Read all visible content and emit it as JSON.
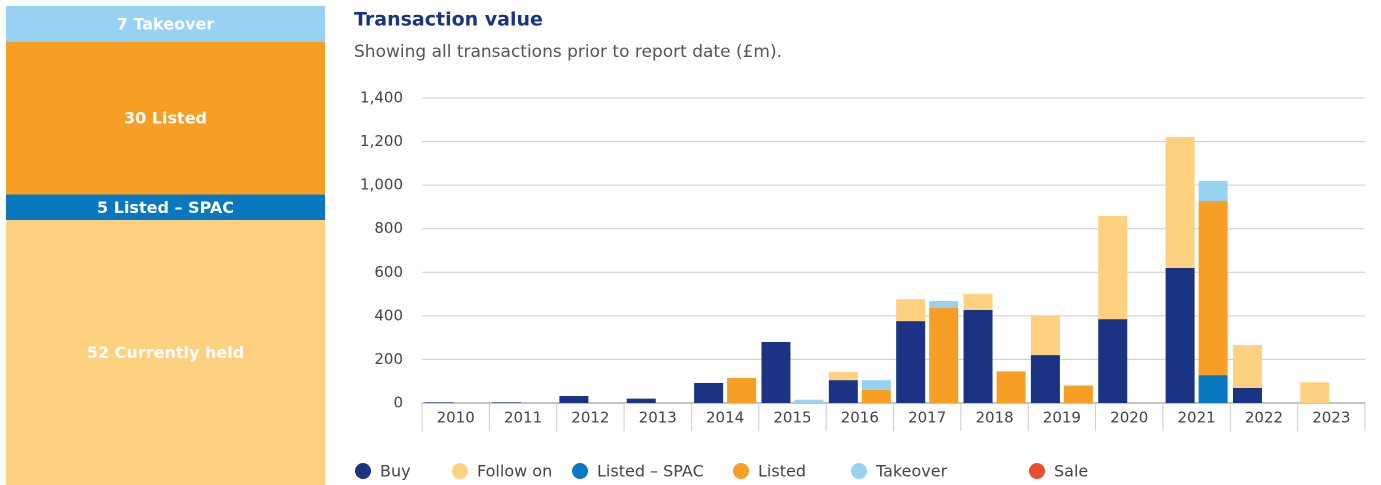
{
  "chart_data": [
    {
      "type": "block",
      "values": [
        7,
        30,
        5,
        52
      ],
      "value_labels": [
        "7 Takeover",
        "30 Listed",
        "5 Listed – SPAC",
        "52 Currently held"
      ],
      "colors": [
        "#98d2f2",
        "#f79f25",
        "#0878c1",
        "#fdd17f"
      ]
    },
    {
      "type": "grouped-stacked-bar",
      "title": "Transaction value",
      "subtitle": "Showing all transactions prior to report date (£m).",
      "categories": [
        "2010",
        "2011",
        "2012",
        "2013",
        "2014",
        "2015",
        "2016",
        "2017",
        "2018",
        "2019",
        "2020",
        "2021",
        "2022",
        "2023"
      ],
      "series": [
        {
          "name": "Buy",
          "color": "#1a3483",
          "stack": "a",
          "values": [
            3,
            3,
            32,
            20,
            92,
            280,
            105,
            376,
            427,
            220,
            385,
            620,
            69,
            0
          ]
        },
        {
          "name": "Follow on",
          "color": "#fdd17f",
          "stack": "a",
          "values": [
            0,
            0,
            0,
            0,
            0,
            0,
            37,
            101,
            73,
            183,
            473,
            601,
            197,
            95
          ]
        },
        {
          "name": "Listed – SPAC",
          "color": "#0878c1",
          "stack": "b",
          "values": [
            0,
            0,
            0,
            0,
            0,
            0,
            0,
            0,
            0,
            0,
            0,
            128,
            0,
            0
          ]
        },
        {
          "name": "Listed",
          "color": "#f79f25",
          "stack": "b",
          "values": [
            0,
            0,
            0,
            0,
            115,
            0,
            60,
            436,
            145,
            80,
            0,
            799,
            0,
            0
          ]
        },
        {
          "name": "Takeover",
          "color": "#98d2f2",
          "stack": "b",
          "values": [
            0,
            0,
            0,
            0,
            0,
            15,
            45,
            32,
            0,
            0,
            0,
            92,
            0,
            0
          ]
        },
        {
          "name": "Sale",
          "color": "#e94e2f",
          "stack": "b",
          "values": [
            0,
            0,
            0,
            0,
            0,
            0,
            0,
            0,
            0,
            0,
            0,
            0,
            0,
            0
          ]
        }
      ],
      "ylim": [
        0,
        1400
      ],
      "yticks": [
        0,
        200,
        400,
        600,
        800,
        {
          "value": 1000,
          "label": "1,000"
        },
        {
          "value": 1200,
          "label": "1,200"
        },
        {
          "value": 1400,
          "label": "1,400"
        }
      ],
      "grid": true
    }
  ]
}
